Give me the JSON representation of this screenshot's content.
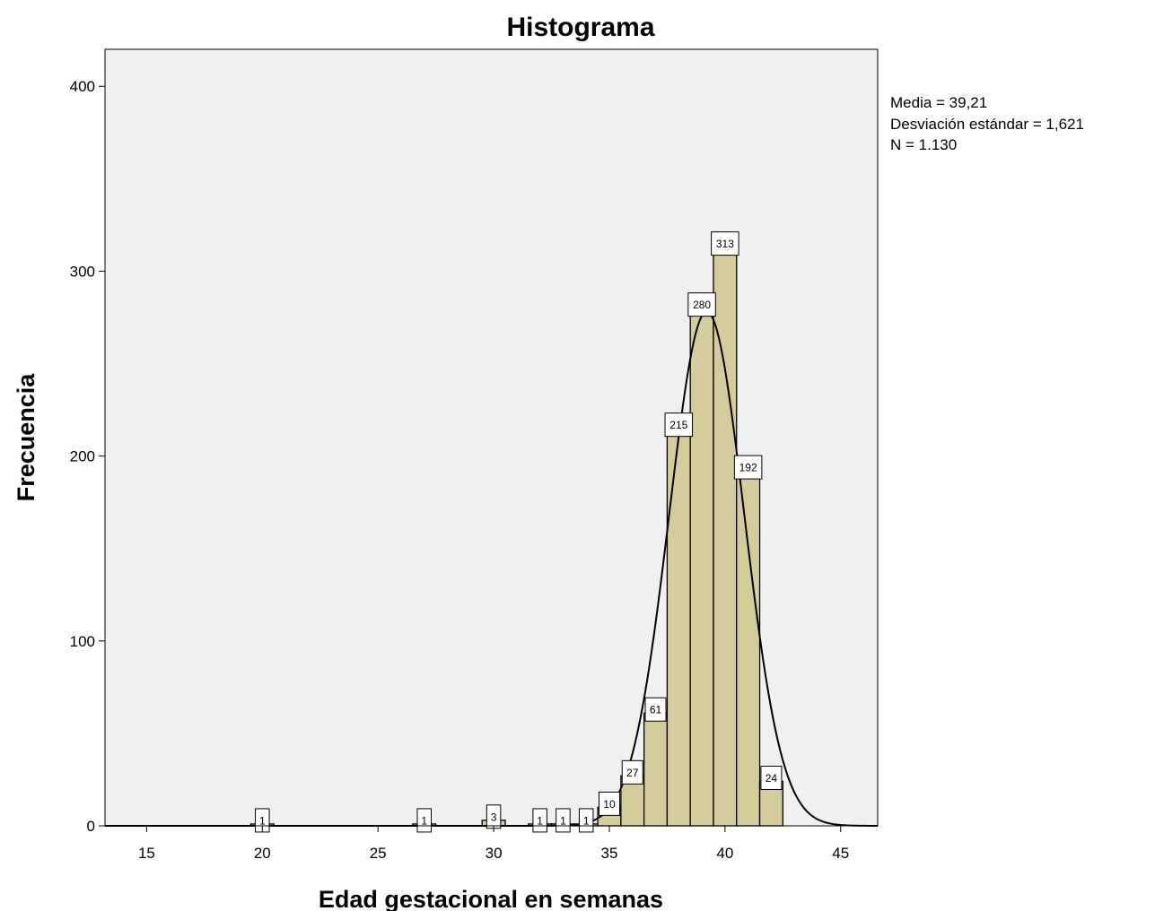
{
  "chart_data": {
    "type": "bar",
    "title": "Histograma",
    "xlabel": "Edad gestacional en semanas",
    "ylabel": "Frecuencia",
    "xlim": [
      13.2,
      46.6
    ],
    "ylim": [
      0,
      420
    ],
    "x_ticks": [
      15,
      20,
      25,
      30,
      35,
      40,
      45
    ],
    "y_ticks": [
      0,
      100,
      200,
      300,
      400
    ],
    "bin_width": 1,
    "bins": [
      {
        "x": 20,
        "value": 1,
        "label": "1"
      },
      {
        "x": 27,
        "value": 1,
        "label": "1"
      },
      {
        "x": 30,
        "value": 3,
        "label": "3"
      },
      {
        "x": 32,
        "value": 1,
        "label": "1"
      },
      {
        "x": 33,
        "value": 1,
        "label": "1"
      },
      {
        "x": 34,
        "value": 1,
        "label": "1"
      },
      {
        "x": 35,
        "value": 10,
        "label": "10"
      },
      {
        "x": 36,
        "value": 27,
        "label": "27"
      },
      {
        "x": 37,
        "value": 61,
        "label": "61"
      },
      {
        "x": 38,
        "value": 215,
        "label": "215"
      },
      {
        "x": 39,
        "value": 280,
        "label": "280"
      },
      {
        "x": 40,
        "value": 313,
        "label": "313"
      },
      {
        "x": 41,
        "value": 192,
        "label": "192"
      },
      {
        "x": 42,
        "value": 24,
        "label": "24"
      }
    ],
    "normal_curve": {
      "mean": 39.21,
      "sd": 1.621,
      "n": 1130
    },
    "stats_text": {
      "mean": "Media = 39,21",
      "sd": "Desviación estándar = 1,621",
      "n": "N = 1.130"
    },
    "colors": {
      "bar_fill": "#d4cc9a",
      "bar_stroke": "#000000",
      "plot_background": "#f0f0f0",
      "curve": "#000000"
    },
    "grid": false,
    "legend_position": "right"
  }
}
